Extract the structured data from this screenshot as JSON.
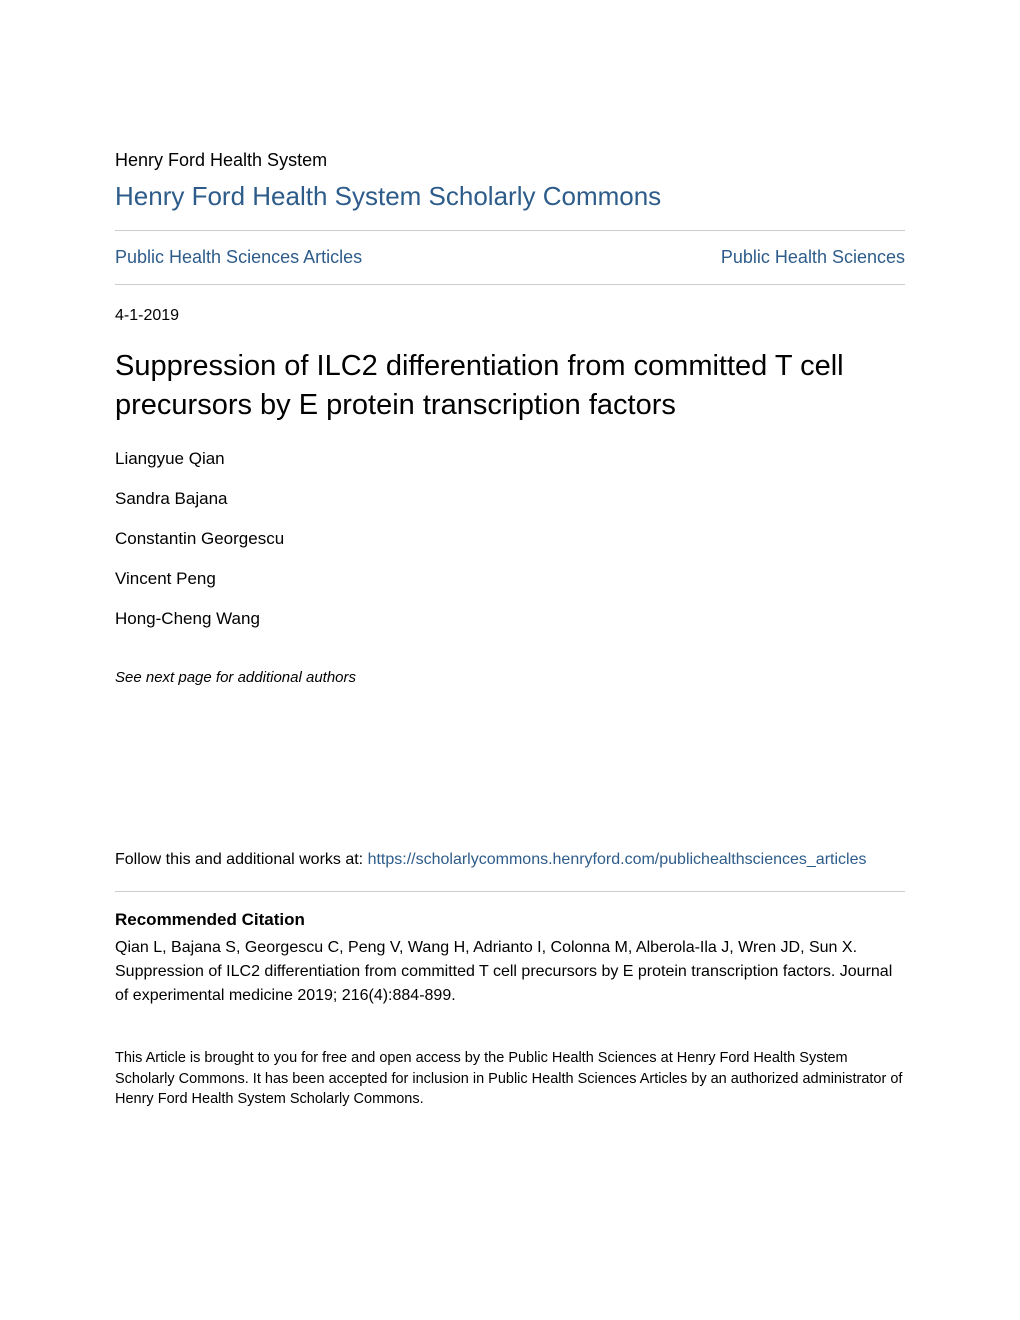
{
  "header": {
    "institution": "Henry Ford Health System",
    "repository": "Henry Ford Health System Scholarly Commons"
  },
  "nav": {
    "left_link": "Public Health Sciences Articles",
    "right_link": "Public Health Sciences"
  },
  "article": {
    "date": "4-1-2019",
    "title": "Suppression of ILC2 differentiation from committed T cell precursors by E protein transcription factors",
    "authors": [
      "Liangyue Qian",
      "Sandra Bajana",
      "Constantin Georgescu",
      "Vincent Peng",
      "Hong-Cheng Wang"
    ],
    "see_next": "See next page for additional authors"
  },
  "follow": {
    "prefix": "Follow this and additional works at: ",
    "link_text": "https://scholarlycommons.henryford.com/publichealthsciences_articles"
  },
  "citation": {
    "heading": "Recommended Citation",
    "text": "Qian L, Bajana S, Georgescu C, Peng V, Wang H, Adrianto I, Colonna M, Alberola-Ila J, Wren JD, Sun X. Suppression of ILC2 differentiation from committed T cell precursors by E protein transcription factors. Journal of experimental medicine 2019; 216(4):884-899."
  },
  "disclaimer": {
    "text": "This Article is brought to you for free and open access by the Public Health Sciences at Henry Ford Health System Scholarly Commons. It has been accepted for inclusion in Public Health Sciences Articles by an authorized administrator of Henry Ford Health System Scholarly Commons."
  },
  "colors": {
    "link_color": "#2e5c8a",
    "text_color": "#000000",
    "divider_color": "#cccccc",
    "background": "#ffffff"
  }
}
